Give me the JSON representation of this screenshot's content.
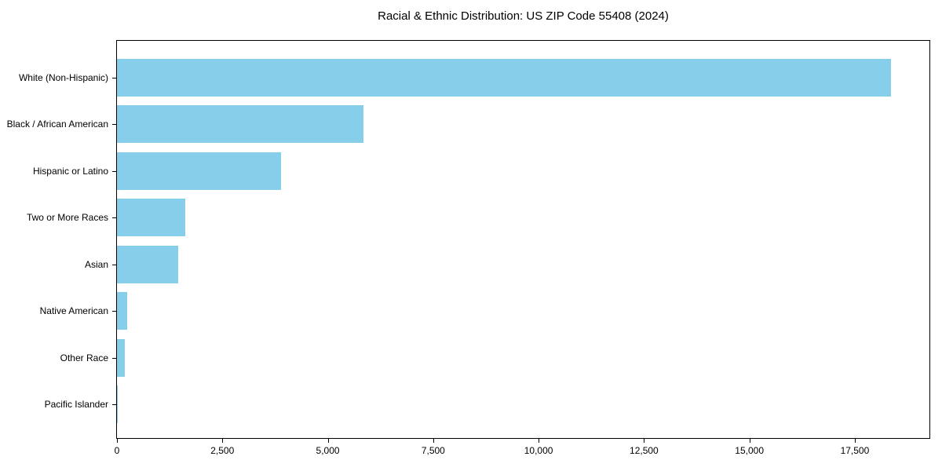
{
  "chart_data": {
    "type": "bar",
    "orientation": "horizontal",
    "title": "Racial & Ethnic Distribution: US ZIP Code 55408 (2024)",
    "categories": [
      "White (Non-Hispanic)",
      "Black / African American",
      "Hispanic or Latino",
      "Two or More Races",
      "Asian",
      "Native American",
      "Other Race",
      "Pacific Islander"
    ],
    "values": [
      18360,
      5850,
      3900,
      1615,
      1450,
      235,
      180,
      10
    ],
    "xlabel": "",
    "ylabel": "",
    "xlim": [
      0,
      19270
    ],
    "xticks": [
      0,
      2500,
      5000,
      7500,
      10000,
      12500,
      15000,
      17500
    ],
    "xtick_labels": [
      "0",
      "2,500",
      "5,000",
      "7,500",
      "10,000",
      "12,500",
      "15,000",
      "17,500"
    ],
    "bar_color": "#87CEEB",
    "grid": false,
    "legend": "none",
    "background": "#FFFFFF",
    "spine_color": "#000000"
  }
}
